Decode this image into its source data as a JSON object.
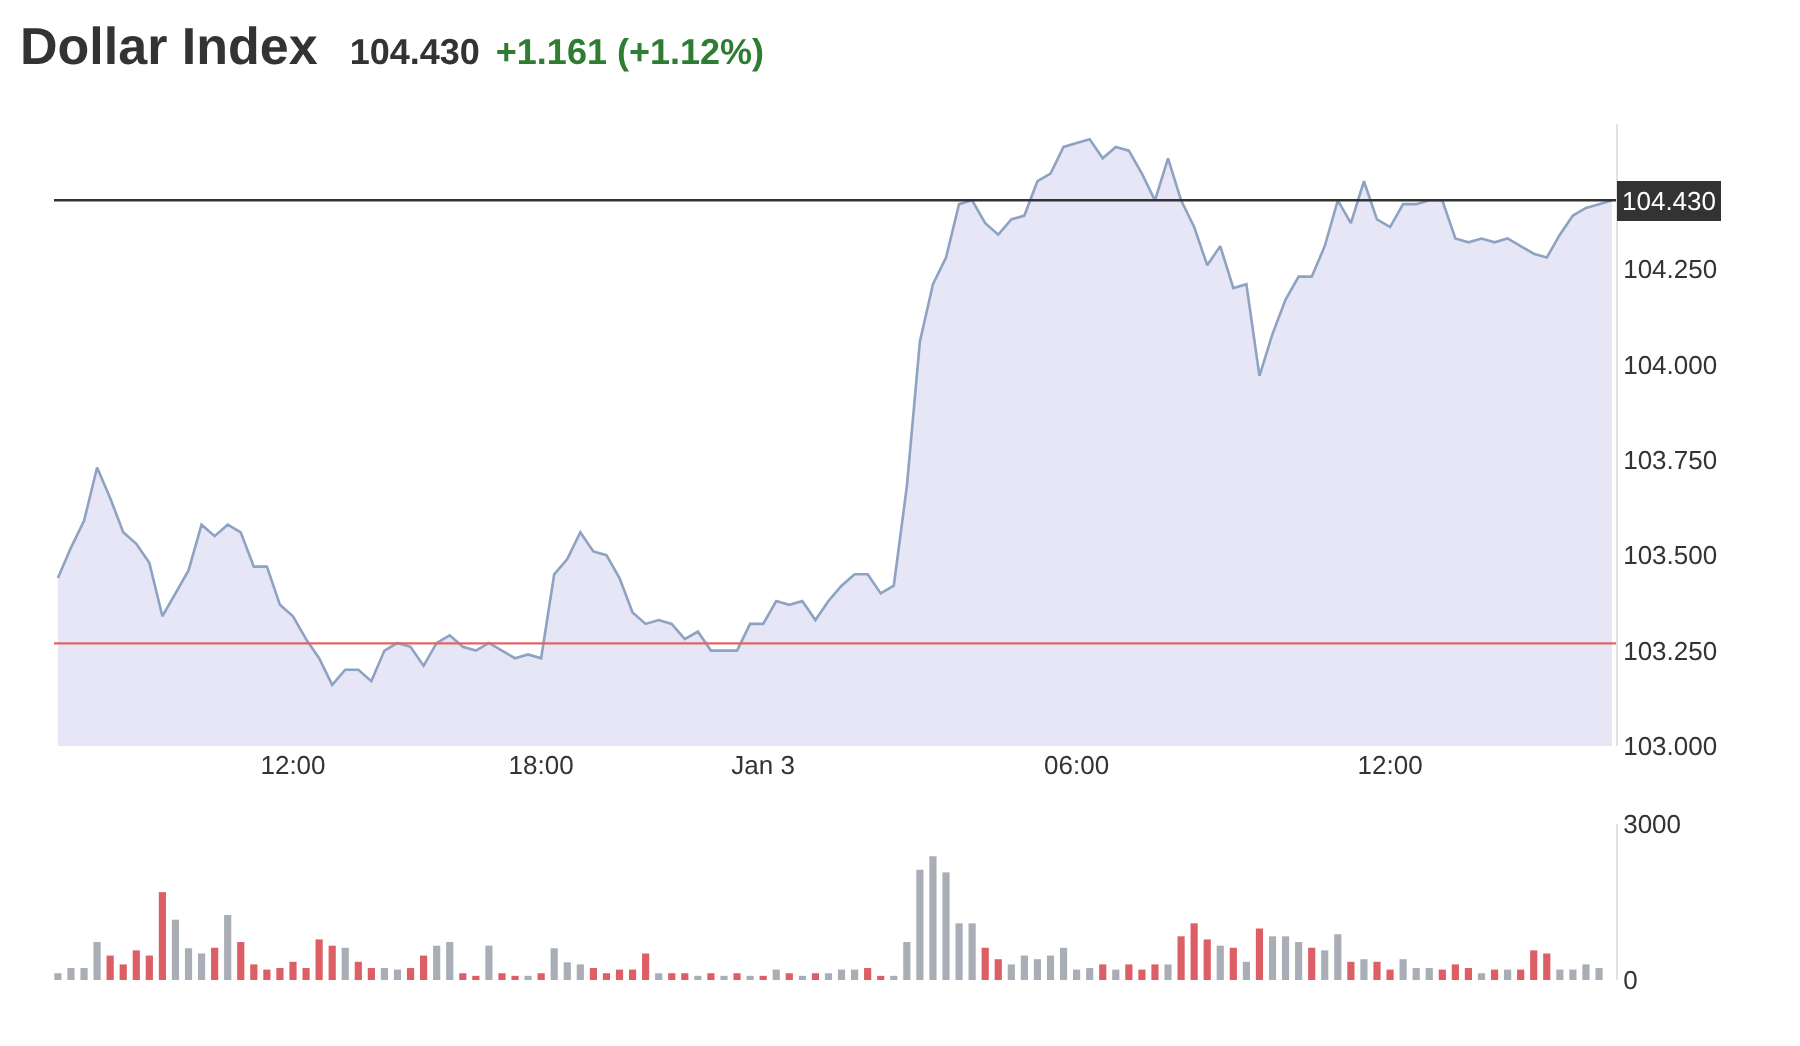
{
  "chart_data": [
    {
      "type": "area",
      "title": "Dollar Index",
      "subtitle": "104.430",
      "annotations": [
        "+1.161 (+1.12%)"
      ],
      "categories": [
        null,
        null,
        null,
        null,
        null,
        null,
        null,
        null,
        null,
        null,
        null,
        null,
        null,
        null,
        null,
        null,
        null,
        null,
        "12:00",
        null,
        null,
        null,
        null,
        null,
        null,
        null,
        null,
        null,
        null,
        null,
        null,
        null,
        null,
        null,
        null,
        null,
        null,
        "18:00",
        null,
        null,
        null,
        null,
        null,
        null,
        null,
        null,
        null,
        null,
        null,
        null,
        null,
        null,
        null,
        null,
        "Jan 3",
        null,
        null,
        null,
        null,
        null,
        null,
        null,
        null,
        null,
        null,
        null,
        null,
        null,
        null,
        null,
        null,
        null,
        null,
        null,
        null,
        null,
        null,
        null,
        "06:00",
        null,
        null,
        null,
        null,
        null,
        null,
        null,
        null,
        null,
        null,
        null,
        null,
        null,
        null,
        null,
        null,
        null,
        null,
        null,
        null,
        null,
        null,
        null,
        "12:00",
        null,
        null,
        null,
        null,
        null,
        null,
        null,
        null,
        null,
        null,
        null,
        null,
        null,
        null,
        null,
        null,
        null
      ],
      "color": "#8ea2c2",
      "values": [
        103.44,
        103.52,
        103.59,
        103.73,
        103.65,
        103.56,
        103.53,
        103.48,
        103.34,
        103.4,
        103.46,
        103.58,
        103.55,
        103.58,
        103.56,
        103.47,
        103.47,
        103.37,
        103.34,
        103.28,
        103.23,
        103.16,
        103.2,
        103.2,
        103.17,
        103.25,
        103.27,
        103.26,
        103.21,
        103.27,
        103.29,
        103.26,
        103.25,
        103.27,
        103.25,
        103.23,
        103.24,
        103.23,
        103.45,
        103.49,
        103.56,
        103.51,
        103.5,
        103.44,
        103.35,
        103.32,
        103.33,
        103.32,
        103.28,
        103.3,
        103.25,
        103.25,
        103.25,
        103.32,
        103.32,
        103.38,
        103.37,
        103.38,
        103.33,
        103.38,
        103.42,
        103.45,
        103.45,
        103.4,
        103.42,
        103.68,
        104.06,
        104.21,
        104.28,
        104.42,
        104.43,
        104.37,
        104.34,
        104.38,
        104.39,
        104.48,
        104.5,
        104.57,
        104.58,
        104.59,
        104.54,
        104.57,
        104.56,
        104.5,
        104.43,
        104.54,
        104.43,
        104.36,
        104.26,
        104.31,
        104.2,
        104.21,
        103.97,
        104.08,
        104.17,
        104.23,
        104.23,
        104.31,
        104.43,
        104.37,
        104.48,
        104.38,
        104.36,
        104.42,
        104.42,
        104.43,
        104.43,
        104.33,
        104.32,
        104.33,
        104.32,
        104.33,
        104.31,
        104.29,
        104.28,
        104.34,
        104.39,
        104.41,
        104.42,
        104.43
      ],
      "ylim": [
        103,
        104.63
      ],
      "yticks": [
        {
          "value": 103,
          "label": "103.000"
        },
        {
          "value": 103.25,
          "label": "103.250"
        },
        {
          "value": 103.5,
          "label": "103.500"
        },
        {
          "value": 103.75,
          "label": "103.750"
        },
        {
          "value": 104,
          "label": "104.000"
        },
        {
          "value": 104.25,
          "label": "104.250"
        }
      ],
      "ref_lines": [
        {
          "axis": "y",
          "value": 104.43,
          "label": "104.430",
          "color": "#333333"
        },
        {
          "axis": "y",
          "value": 103.269,
          "color": "#e06666"
        }
      ]
    },
    {
      "type": "bar",
      "tick_labels": "y",
      "categories": [
        null,
        null,
        null,
        null,
        null,
        null,
        null,
        null,
        null,
        null,
        null,
        null,
        null,
        null,
        null,
        null,
        null,
        null,
        null,
        null,
        null,
        null,
        null,
        null,
        null,
        null,
        null,
        null,
        null,
        null,
        null,
        null,
        null,
        null,
        null,
        null,
        null,
        null,
        null,
        null,
        null,
        null,
        null,
        null,
        null,
        null,
        null,
        null,
        null,
        null,
        null,
        null,
        null,
        null,
        null,
        null,
        null,
        null,
        null,
        null,
        null,
        null,
        null,
        null,
        null,
        null,
        null,
        null,
        null,
        null,
        null,
        null,
        null,
        null,
        null,
        null,
        null,
        null,
        null,
        null,
        null,
        null,
        null,
        null,
        null,
        null,
        null,
        null,
        null,
        null,
        null,
        null,
        null,
        null,
        null,
        null,
        null,
        null,
        null,
        null,
        null,
        null,
        null,
        null,
        null,
        null,
        null,
        null,
        null,
        null,
        null,
        null,
        null,
        null,
        null,
        null,
        null,
        null,
        null,
        null
      ],
      "values": [
        130,
        230,
        230,
        730,
        470,
        300,
        570,
        470,
        1690,
        1160,
        610,
        510,
        620,
        1250,
        730,
        300,
        200,
        230,
        350,
        230,
        780,
        660,
        620,
        350,
        230,
        230,
        200,
        230,
        470,
        660,
        730,
        130,
        80,
        660,
        130,
        80,
        80,
        130,
        610,
        340,
        300,
        230,
        130,
        200,
        200,
        510,
        130,
        130,
        130,
        80,
        130,
        80,
        130,
        80,
        80,
        200,
        130,
        80,
        130,
        130,
        200,
        200,
        230,
        80,
        80,
        730,
        2120,
        2380,
        2070,
        1090,
        1090,
        620,
        400,
        300,
        470,
        400,
        470,
        620,
        200,
        230,
        300,
        200,
        300,
        200,
        300,
        300,
        840,
        1090,
        780,
        660,
        620,
        350,
        990,
        840,
        840,
        730,
        620,
        570,
        880,
        350,
        400,
        350,
        200,
        400,
        230,
        230,
        200,
        300,
        230,
        130,
        200,
        200,
        200,
        570,
        510,
        200,
        200,
        300,
        230,
        null
      ],
      "colors": [
        "#a9aeb6",
        "#a9aeb6",
        "#a9aeb6",
        "#a9aeb6",
        "#dc5f66",
        "#dc5f66",
        "#dc5f66",
        "#dc5f66",
        "#dc5f66",
        "#a9aeb6",
        "#a9aeb6",
        "#a9aeb6",
        "#dc5f66",
        "#a9aeb6",
        "#dc5f66",
        "#dc5f66",
        "#dc5f66",
        "#dc5f66",
        "#dc5f66",
        "#dc5f66",
        "#dc5f66",
        "#dc5f66",
        "#a9aeb6",
        "#dc5f66",
        "#dc5f66",
        "#a9aeb6",
        "#a9aeb6",
        "#dc5f66",
        "#dc5f66",
        "#a9aeb6",
        "#a9aeb6",
        "#dc5f66",
        "#dc5f66",
        "#a9aeb6",
        "#dc5f66",
        "#dc5f66",
        "#a9aeb6",
        "#dc5f66",
        "#a9aeb6",
        "#a9aeb6",
        "#a9aeb6",
        "#dc5f66",
        "#dc5f66",
        "#dc5f66",
        "#dc5f66",
        "#dc5f66",
        "#a9aeb6",
        "#dc5f66",
        "#dc5f66",
        "#a9aeb6",
        "#dc5f66",
        "#a9aeb6",
        "#dc5f66",
        "#a9aeb6",
        "#dc5f66",
        "#a9aeb6",
        "#dc5f66",
        "#a9aeb6",
        "#dc5f66",
        "#a9aeb6",
        "#a9aeb6",
        "#a9aeb6",
        "#dc5f66",
        "#dc5f66",
        "#a9aeb6",
        "#a9aeb6",
        "#a9aeb6",
        "#a9aeb6",
        "#a9aeb6",
        "#a9aeb6",
        "#a9aeb6",
        "#dc5f66",
        "#dc5f66",
        "#a9aeb6",
        "#a9aeb6",
        "#a9aeb6",
        "#a9aeb6",
        "#a9aeb6",
        "#a9aeb6",
        "#a9aeb6",
        "#dc5f66",
        "#a9aeb6",
        "#dc5f66",
        "#dc5f66",
        "#dc5f66",
        "#a9aeb6",
        "#dc5f66",
        "#dc5f66",
        "#dc5f66",
        "#a9aeb6",
        "#dc5f66",
        "#a9aeb6",
        "#dc5f66",
        "#a9aeb6",
        "#a9aeb6",
        "#a9aeb6",
        "#dc5f66",
        "#a9aeb6",
        "#a9aeb6",
        "#dc5f66",
        "#a9aeb6",
        "#dc5f66",
        "#dc5f66",
        "#a9aeb6",
        "#a9aeb6",
        "#a9aeb6",
        "#dc5f66",
        "#dc5f66",
        "#dc5f66",
        "#a9aeb6",
        "#dc5f66",
        "#a9aeb6",
        "#dc5f66",
        "#dc5f66",
        "#dc5f66",
        "#a9aeb6",
        "#a9aeb6",
        "#a9aeb6",
        "#a9aeb6",
        "#a9aeb6"
      ],
      "ylim": [
        0,
        3000
      ],
      "yticks": [
        0,
        3000
      ]
    }
  ]
}
